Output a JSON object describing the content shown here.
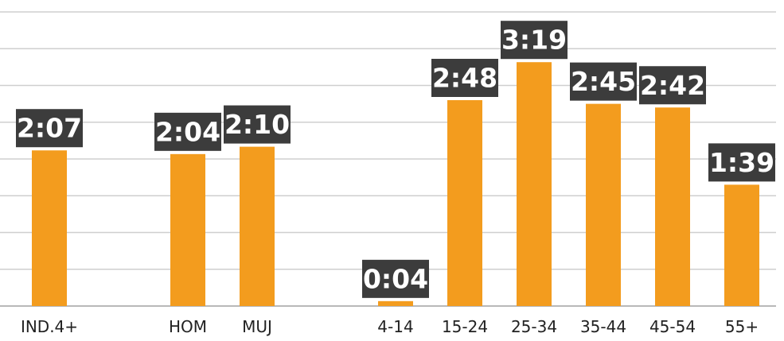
{
  "chart_data": {
    "type": "bar",
    "categories": [
      "IND.4+",
      "",
      "HOM",
      "MUJ",
      "",
      "4-14",
      "15-24",
      "25-34",
      "35-44",
      "45-54",
      "55+"
    ],
    "values": [
      127,
      null,
      124,
      130,
      null,
      4,
      168,
      199,
      165,
      162,
      99
    ],
    "data_labels": [
      "2:07",
      "",
      "2:04",
      "2:10",
      "",
      "0:04",
      "2:48",
      "3:19",
      "2:45",
      "2:42",
      "1:39"
    ],
    "value_unit": "minutes",
    "ylim": [
      0,
      240
    ],
    "grid": true,
    "gridlines": 8,
    "bar_color": "#f39c1e",
    "label_box_color": "#3c3c3c",
    "label_text_color": "#ffffff",
    "grid_color": "#cfcfcf"
  }
}
